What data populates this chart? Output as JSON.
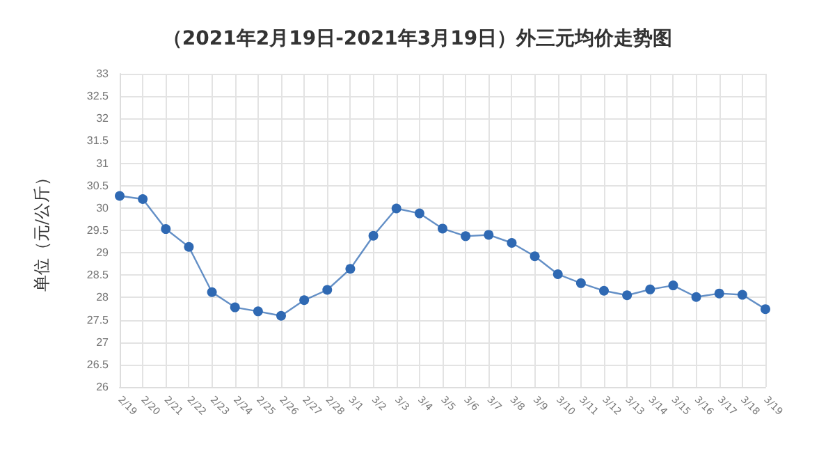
{
  "chart_data": {
    "type": "line",
    "title": "（2021年2月19日-2021年3月19日）外三元均价走势图",
    "ylabel": "单位（元/公斤）",
    "categories": [
      "2/19",
      "2/20",
      "2/21",
      "2/22",
      "2/23",
      "2/24",
      "2/25",
      "2/26",
      "2/27",
      "2/28",
      "3/1",
      "3/2",
      "3/3",
      "3/4",
      "3/5",
      "3/6",
      "3/7",
      "3/8",
      "3/9",
      "3/10",
      "3/11",
      "3/12",
      "3/13",
      "3/14",
      "3/15",
      "3/16",
      "3/17",
      "3/18",
      "3/19"
    ],
    "series": [
      {
        "color": "#2f69b3",
        "values": [
          30.27,
          30.2,
          29.53,
          29.13,
          28.12,
          27.78,
          27.69,
          27.59,
          27.94,
          28.17,
          28.64,
          29.38,
          29.99,
          29.88,
          29.54,
          29.37,
          29.4,
          29.22,
          28.92,
          28.52,
          28.32,
          28.15,
          28.05,
          28.18,
          28.27,
          28.01,
          28.09,
          28.06,
          27.74
        ]
      }
    ],
    "ylim": [
      26,
      33
    ],
    "yticks": [
      26,
      26.5,
      27,
      27.5,
      28,
      28.5,
      29,
      29.5,
      30,
      30.5,
      31,
      31.5,
      32,
      32.5,
      33
    ],
    "grid": true,
    "marker": "circle",
    "line_style": "solid"
  }
}
